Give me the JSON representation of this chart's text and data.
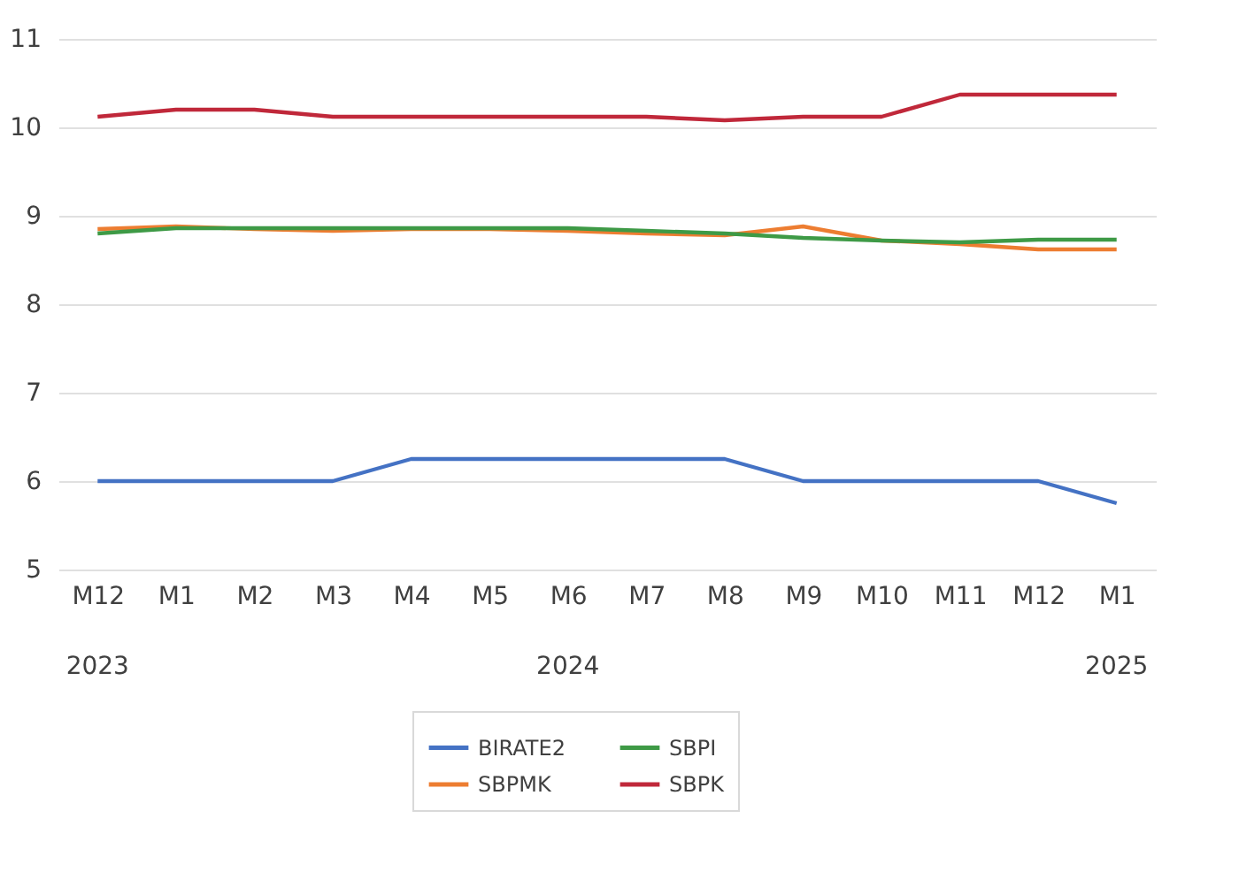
{
  "chart_data": {
    "type": "line",
    "categories": [
      "M12",
      "M1",
      "M2",
      "M3",
      "M4",
      "M5",
      "M6",
      "M7",
      "M8",
      "M9",
      "M10",
      "M11",
      "M12",
      "M1"
    ],
    "series": [
      {
        "name": "BIRATE2",
        "color": "#4472c4",
        "values": [
          6,
          6,
          6,
          6,
          6.25,
          6.25,
          6.25,
          6.25,
          6.25,
          6,
          6,
          6,
          6,
          5.75
        ]
      },
      {
        "name": "SBPMK",
        "color": "#ed7d31",
        "values": [
          8.85,
          8.88,
          8.85,
          8.83,
          8.85,
          8.85,
          8.83,
          8.8,
          8.78,
          8.88,
          8.72,
          8.68,
          8.62,
          8.62
        ]
      },
      {
        "name": "SBPI",
        "color": "#3e9a46",
        "values": [
          8.8,
          8.86,
          8.86,
          8.86,
          8.86,
          8.86,
          8.86,
          8.83,
          8.8,
          8.75,
          8.72,
          8.7,
          8.73,
          8.73
        ]
      },
      {
        "name": "SBPK",
        "color": "#c0283a",
        "values": [
          10.12,
          10.2,
          10.2,
          10.12,
          10.12,
          10.12,
          10.12,
          10.12,
          10.08,
          10.12,
          10.12,
          10.37,
          10.37,
          10.37
        ]
      }
    ],
    "annotations": [
      "2023",
      "2024",
      "2025"
    ],
    "ylim": [
      5,
      11
    ],
    "yticks": [
      5,
      6,
      7,
      8,
      9,
      10,
      11
    ],
    "grid": "y",
    "legend": "bottom",
    "marker": "none",
    "line_style": "solid"
  }
}
